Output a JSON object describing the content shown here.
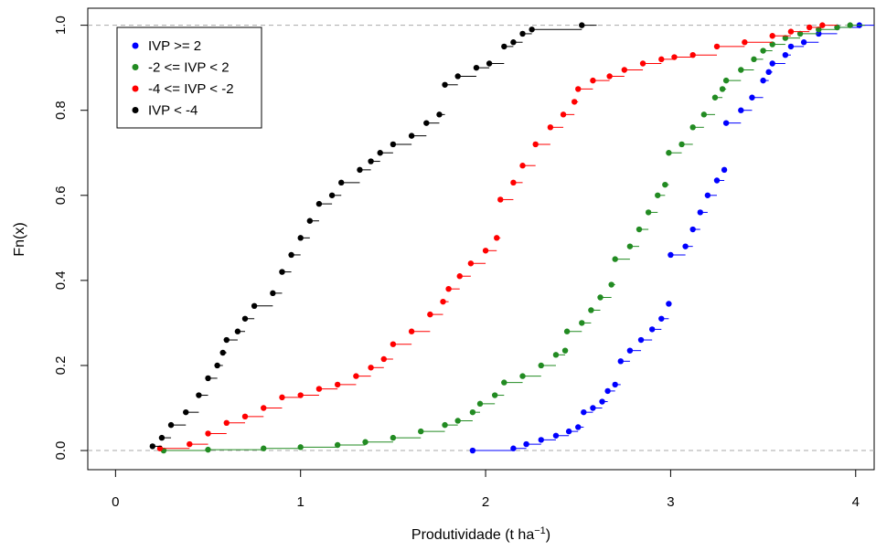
{
  "chart_data": {
    "type": "line",
    "title": "",
    "xlabel": "Produtividade (t ha",
    "xlabel_superscript": "−1",
    "xlabel_suffix": ")",
    "ylabel": "Fn(x)",
    "xlim": [
      -0.15,
      4.1
    ],
    "ylim": [
      -0.045,
      1.04
    ],
    "xticks": [
      0,
      1,
      2,
      3,
      4
    ],
    "xtick_labels": [
      "0",
      "1",
      "2",
      "3",
      "4"
    ],
    "yticks": [
      0.0,
      0.2,
      0.4,
      0.6,
      0.8,
      1.0
    ],
    "ytick_labels": [
      "0.0",
      "0.2",
      "0.4",
      "0.6",
      "0.8",
      "1.0"
    ],
    "hlines": [
      0,
      1
    ],
    "grid": false,
    "legend_position": "top-left",
    "series": [
      {
        "name": "IVP >= 2",
        "color": "#0000FF",
        "points": [
          [
            1.93,
            0.0
          ],
          [
            2.15,
            0.005
          ],
          [
            2.22,
            0.015
          ],
          [
            2.3,
            0.025
          ],
          [
            2.38,
            0.035
          ],
          [
            2.45,
            0.045
          ],
          [
            2.5,
            0.055
          ],
          [
            2.53,
            0.09
          ],
          [
            2.58,
            0.1
          ],
          [
            2.63,
            0.115
          ],
          [
            2.66,
            0.14
          ],
          [
            2.7,
            0.155
          ],
          [
            2.73,
            0.21
          ],
          [
            2.78,
            0.235
          ],
          [
            2.84,
            0.26
          ],
          [
            2.9,
            0.285
          ],
          [
            2.95,
            0.31
          ],
          [
            2.99,
            0.345
          ],
          [
            3.0,
            0.46
          ],
          [
            3.08,
            0.48
          ],
          [
            3.12,
            0.52
          ],
          [
            3.16,
            0.56
          ],
          [
            3.2,
            0.6
          ],
          [
            3.25,
            0.635
          ],
          [
            3.29,
            0.66
          ],
          [
            3.3,
            0.77
          ],
          [
            3.38,
            0.8
          ],
          [
            3.44,
            0.83
          ],
          [
            3.5,
            0.87
          ],
          [
            3.53,
            0.89
          ],
          [
            3.55,
            0.91
          ],
          [
            3.62,
            0.93
          ],
          [
            3.65,
            0.95
          ],
          [
            3.72,
            0.96
          ],
          [
            3.8,
            0.98
          ],
          [
            3.9,
            0.995
          ],
          [
            4.02,
            1.0
          ]
        ]
      },
      {
        "name": "-2 <= IVP < 2",
        "color": "#228B22",
        "points": [
          [
            0.26,
            0.0
          ],
          [
            0.5,
            0.002
          ],
          [
            0.8,
            0.005
          ],
          [
            1.0,
            0.008
          ],
          [
            1.2,
            0.013
          ],
          [
            1.35,
            0.02
          ],
          [
            1.5,
            0.03
          ],
          [
            1.65,
            0.045
          ],
          [
            1.78,
            0.06
          ],
          [
            1.85,
            0.07
          ],
          [
            1.93,
            0.09
          ],
          [
            1.97,
            0.11
          ],
          [
            2.05,
            0.13
          ],
          [
            2.1,
            0.16
          ],
          [
            2.2,
            0.175
          ],
          [
            2.3,
            0.2
          ],
          [
            2.38,
            0.225
          ],
          [
            2.43,
            0.235
          ],
          [
            2.44,
            0.28
          ],
          [
            2.52,
            0.3
          ],
          [
            2.57,
            0.33
          ],
          [
            2.62,
            0.36
          ],
          [
            2.68,
            0.39
          ],
          [
            2.7,
            0.45
          ],
          [
            2.78,
            0.48
          ],
          [
            2.83,
            0.52
          ],
          [
            2.88,
            0.56
          ],
          [
            2.93,
            0.6
          ],
          [
            2.97,
            0.625
          ],
          [
            2.99,
            0.7
          ],
          [
            3.06,
            0.72
          ],
          [
            3.12,
            0.76
          ],
          [
            3.18,
            0.79
          ],
          [
            3.24,
            0.83
          ],
          [
            3.28,
            0.85
          ],
          [
            3.3,
            0.87
          ],
          [
            3.38,
            0.895
          ],
          [
            3.45,
            0.92
          ],
          [
            3.5,
            0.94
          ],
          [
            3.55,
            0.955
          ],
          [
            3.62,
            0.97
          ],
          [
            3.7,
            0.98
          ],
          [
            3.8,
            0.99
          ],
          [
            3.9,
            0.995
          ],
          [
            3.97,
            1.0
          ]
        ]
      },
      {
        "name": "-4 <= IVP < -2",
        "color": "#FF0000",
        "points": [
          [
            0.24,
            0.005
          ],
          [
            0.4,
            0.015
          ],
          [
            0.5,
            0.04
          ],
          [
            0.6,
            0.065
          ],
          [
            0.7,
            0.08
          ],
          [
            0.8,
            0.1
          ],
          [
            0.9,
            0.125
          ],
          [
            1.0,
            0.13
          ],
          [
            1.1,
            0.145
          ],
          [
            1.2,
            0.155
          ],
          [
            1.3,
            0.175
          ],
          [
            1.38,
            0.195
          ],
          [
            1.45,
            0.215
          ],
          [
            1.5,
            0.25
          ],
          [
            1.6,
            0.28
          ],
          [
            1.7,
            0.32
          ],
          [
            1.77,
            0.35
          ],
          [
            1.8,
            0.38
          ],
          [
            1.86,
            0.41
          ],
          [
            1.92,
            0.44
          ],
          [
            2.0,
            0.47
          ],
          [
            2.06,
            0.5
          ],
          [
            2.08,
            0.59
          ],
          [
            2.15,
            0.63
          ],
          [
            2.2,
            0.67
          ],
          [
            2.27,
            0.72
          ],
          [
            2.35,
            0.76
          ],
          [
            2.42,
            0.79
          ],
          [
            2.48,
            0.82
          ],
          [
            2.5,
            0.85
          ],
          [
            2.58,
            0.87
          ],
          [
            2.67,
            0.88
          ],
          [
            2.75,
            0.895
          ],
          [
            2.85,
            0.91
          ],
          [
            2.95,
            0.92
          ],
          [
            3.02,
            0.925
          ],
          [
            3.12,
            0.93
          ],
          [
            3.25,
            0.95
          ],
          [
            3.4,
            0.96
          ],
          [
            3.55,
            0.975
          ],
          [
            3.65,
            0.985
          ],
          [
            3.75,
            0.995
          ],
          [
            3.82,
            1.0
          ]
        ]
      },
      {
        "name": "IVP < -4",
        "color": "#000000",
        "points": [
          [
            0.2,
            0.01
          ],
          [
            0.25,
            0.03
          ],
          [
            0.3,
            0.06
          ],
          [
            0.38,
            0.09
          ],
          [
            0.45,
            0.13
          ],
          [
            0.5,
            0.17
          ],
          [
            0.55,
            0.2
          ],
          [
            0.58,
            0.23
          ],
          [
            0.6,
            0.26
          ],
          [
            0.66,
            0.28
          ],
          [
            0.7,
            0.31
          ],
          [
            0.75,
            0.34
          ],
          [
            0.85,
            0.37
          ],
          [
            0.9,
            0.42
          ],
          [
            0.95,
            0.46
          ],
          [
            1.0,
            0.5
          ],
          [
            1.05,
            0.54
          ],
          [
            1.1,
            0.58
          ],
          [
            1.17,
            0.6
          ],
          [
            1.22,
            0.63
          ],
          [
            1.32,
            0.66
          ],
          [
            1.38,
            0.68
          ],
          [
            1.43,
            0.7
          ],
          [
            1.5,
            0.72
          ],
          [
            1.6,
            0.74
          ],
          [
            1.68,
            0.77
          ],
          [
            1.75,
            0.79
          ],
          [
            1.78,
            0.86
          ],
          [
            1.85,
            0.88
          ],
          [
            1.95,
            0.9
          ],
          [
            2.02,
            0.91
          ],
          [
            2.1,
            0.95
          ],
          [
            2.15,
            0.96
          ],
          [
            2.2,
            0.98
          ],
          [
            2.25,
            0.99
          ],
          [
            2.52,
            1.0
          ]
        ]
      }
    ]
  }
}
